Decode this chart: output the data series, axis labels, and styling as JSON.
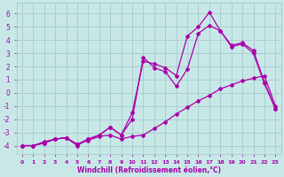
{
  "xlabel": "Windchill (Refroidissement éolien,°C)",
  "xlim": [
    -0.5,
    23.5
  ],
  "ylim": [
    -4.6,
    6.8
  ],
  "yticks": [
    -4,
    -3,
    -2,
    -1,
    0,
    1,
    2,
    3,
    4,
    5,
    6
  ],
  "xticks": [
    0,
    1,
    2,
    3,
    4,
    5,
    6,
    7,
    8,
    9,
    10,
    11,
    12,
    13,
    14,
    15,
    16,
    17,
    18,
    19,
    20,
    21,
    22,
    23
  ],
  "bg_color": "#c8e8e8",
  "grid_color": "#aacece",
  "line_color": "#aa00aa",
  "line1_x": [
    0,
    1,
    2,
    3,
    4,
    5,
    6,
    7,
    8,
    9,
    10,
    11,
    12,
    13,
    14,
    15,
    16,
    17,
    18,
    19,
    20,
    21,
    22,
    23
  ],
  "line1_y": [
    -4.0,
    -4.0,
    -3.7,
    -3.5,
    -3.4,
    -3.9,
    -3.6,
    -3.3,
    -3.2,
    -3.5,
    -3.3,
    -3.2,
    -2.7,
    -2.2,
    -1.6,
    -1.1,
    -0.6,
    -0.2,
    0.3,
    0.6,
    0.9,
    1.1,
    1.3,
    -1.0
  ],
  "line2_x": [
    0,
    1,
    2,
    3,
    4,
    5,
    6,
    7,
    8,
    9,
    10,
    11,
    12,
    13,
    14,
    15,
    16,
    17,
    18,
    19,
    20,
    21,
    22,
    23
  ],
  "line2_y": [
    -4.0,
    -4.0,
    -3.8,
    -3.5,
    -3.4,
    -4.0,
    -3.5,
    -3.2,
    -2.6,
    -3.2,
    -2.0,
    2.7,
    1.9,
    1.6,
    0.5,
    1.8,
    4.5,
    5.1,
    4.7,
    3.6,
    3.8,
    3.2,
    0.8,
    -1.2
  ],
  "line3_x": [
    0,
    1,
    2,
    3,
    4,
    5,
    6,
    7,
    8,
    9,
    10,
    11,
    12,
    13,
    14,
    15,
    16,
    17,
    18,
    19,
    20,
    21,
    22,
    23
  ],
  "line3_y": [
    -4.0,
    -4.0,
    -3.8,
    -3.5,
    -3.4,
    -3.9,
    -3.5,
    -3.2,
    -2.6,
    -3.2,
    -1.5,
    2.4,
    2.2,
    1.9,
    1.3,
    4.3,
    5.0,
    6.1,
    4.7,
    3.5,
    3.7,
    3.0,
    0.7,
    -1.2
  ]
}
